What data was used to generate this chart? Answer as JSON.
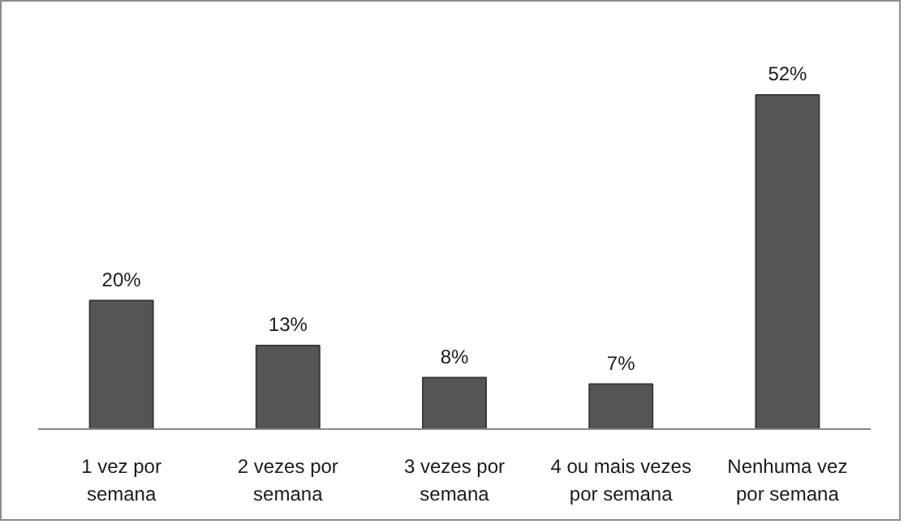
{
  "chart_data": {
    "type": "bar",
    "categories": [
      "1 vez por\nsemana",
      "2 vezes por\nsemana",
      "3 vezes por\nsemana",
      "4 ou mais vezes\npor semana",
      "Nenhuma vez\npor semana"
    ],
    "values": [
      20,
      13,
      8,
      7,
      52
    ],
    "value_labels": [
      "20%",
      "13%",
      "8%",
      "7%",
      "52%"
    ],
    "color": "#555555",
    "grid": false
  }
}
